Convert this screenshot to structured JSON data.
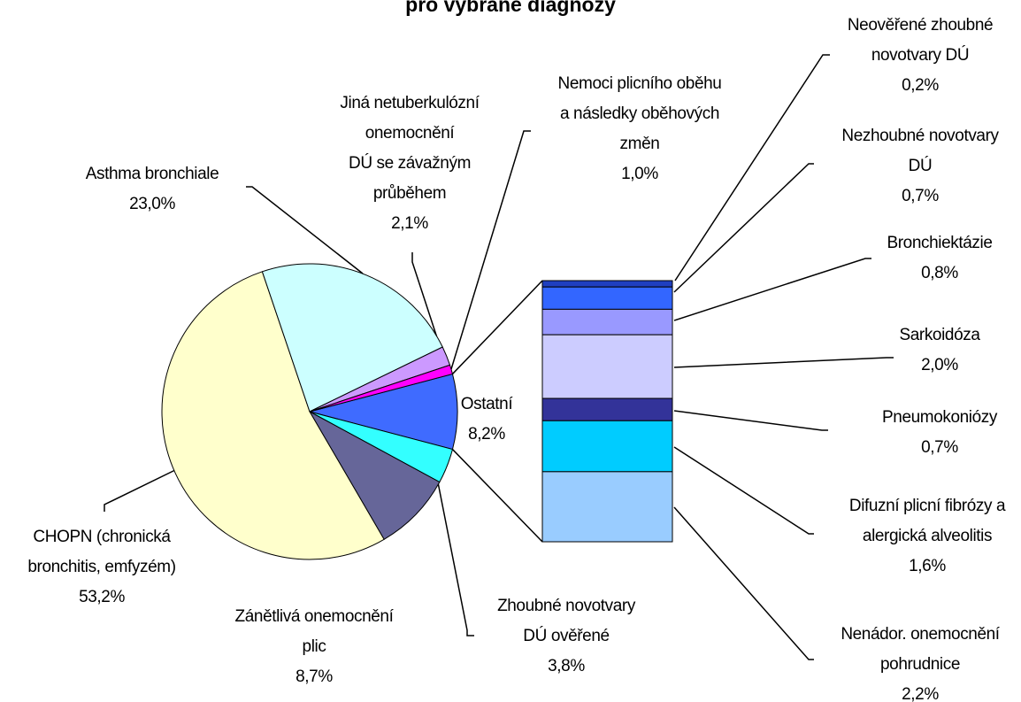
{
  "chart_data": {
    "type": "pie-of-bar",
    "title": "pro vybrané diagnózy",
    "categories": [
      "Ostatní",
      "Zhoubné novotvary\nDÚ ověřené",
      "Zánětlivá onemocnění\nplic",
      "CHOPN (chronická\nbronchitis, emfyzém)",
      "Asthma bronchiale",
      "Jiná netuberkulózní\nonemocnění\nDÚ se závažným\nprůběhem",
      "Nemoci plicního oběhu\na následky oběhových\nzměn"
    ],
    "values": [
      8.2,
      3.8,
      8.7,
      53.2,
      23.0,
      2.1,
      1.0
    ],
    "value_labels": [
      "8,2%",
      "3,8%",
      "8,7%",
      "53,2%",
      "23,0%",
      "2,1%",
      "1,0%"
    ],
    "colors": [
      "#3f6bff",
      "#33ffff",
      "#666699",
      "#ffffcc",
      "#ccffff",
      "#cc99ff",
      "#ff00ff"
    ],
    "bar_categories": [
      "Neověřené zhoubné\nnovotvary DÚ",
      "Nezhoubné novotvary\nDÚ",
      "Bronchiektázie",
      "Sarkoidóza",
      "Pneumokoniózy",
      "Difuzní plicní fibrózy a\nalergická alveolitis",
      "Nenádor. onemocnění\npohrudnice"
    ],
    "bar_values": [
      0.2,
      0.7,
      0.8,
      2.0,
      0.7,
      1.6,
      2.2
    ],
    "bar_value_labels": [
      "0,2%",
      "0,7%",
      "0,8%",
      "2,0%",
      "0,7%",
      "1,6%",
      "2,2%"
    ],
    "bar_colors": [
      "#1f3fbf",
      "#3366ff",
      "#9999ff",
      "#ccccff",
      "#333399",
      "#00ccff",
      "#99ccff"
    ]
  }
}
